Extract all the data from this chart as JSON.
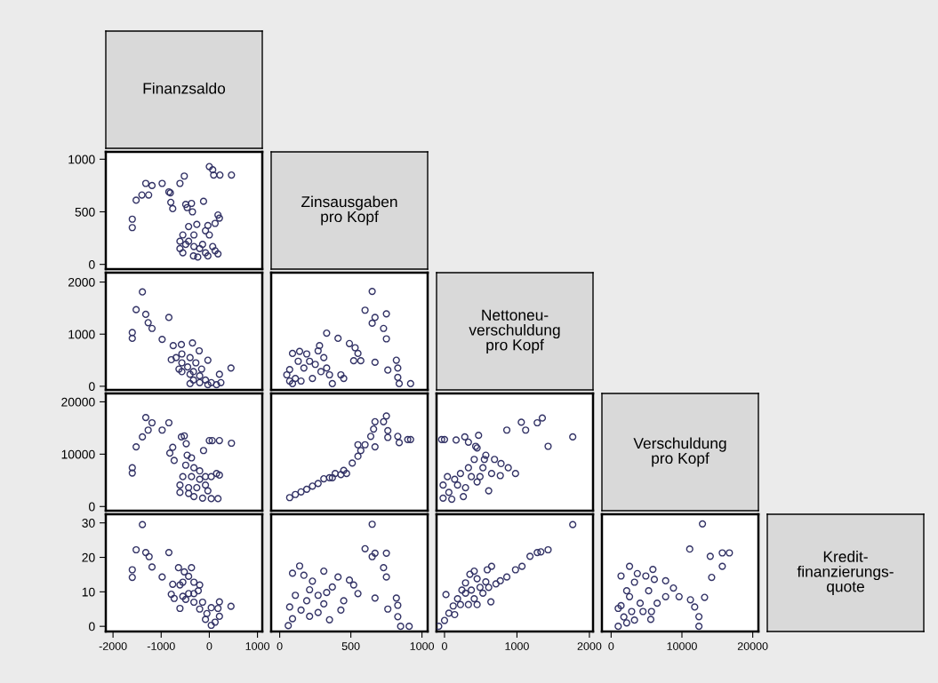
{
  "chart_data": [
    {
      "type": "other",
      "title": "Finanzsaldo"
    },
    {
      "type": "scatter",
      "color": "#333366",
      "marker": "circle",
      "tick_labels": "y",
      "xlim": [
        -2150,
        1100
      ],
      "ylim": [
        -45,
        1070
      ],
      "xticks": [
        -2000,
        -1000,
        0,
        1000
      ],
      "yticks": [
        0,
        500,
        1000
      ],
      "x": [
        -1600,
        -1600,
        -1520,
        -1400,
        -1260,
        -1320,
        -1190,
        -980,
        -840,
        -810,
        -800,
        -760,
        -610,
        -520,
        -490,
        -370,
        -350,
        -460,
        -120,
        0,
        70,
        90,
        220,
        460,
        180,
        210,
        120,
        -30,
        -610,
        -550,
        -330,
        -240,
        -30,
        180,
        -550,
        -430,
        -260,
        -80,
        0,
        -140,
        -430,
        -320,
        -200,
        -490,
        70,
        120,
        -320,
        -80,
        -610
      ],
      "values": [
        430,
        350,
        610,
        660,
        660,
        770,
        750,
        770,
        690,
        680,
        590,
        530,
        770,
        840,
        570,
        580,
        500,
        540,
        600,
        930,
        900,
        850,
        850,
        850,
        470,
        440,
        390,
        370,
        150,
        110,
        80,
        70,
        80,
        100,
        280,
        360,
        380,
        320,
        280,
        190,
        220,
        280,
        150,
        190,
        170,
        130,
        170,
        110,
        220
      ]
    },
    {
      "type": "other",
      "title": "Zinsausgaben\npro Kopf"
    },
    {
      "type": "scatter",
      "color": "#333366",
      "marker": "circle",
      "tick_labels": "y",
      "xlim": [
        -2150,
        1100
      ],
      "ylim": [
        -70,
        2180
      ],
      "xticks": [
        -2000,
        -1000,
        0,
        1000
      ],
      "yticks": [
        0,
        1000,
        2000
      ],
      "x": [
        -1390,
        -1520,
        -1320,
        -1270,
        -1190,
        -1600,
        -1600,
        -840,
        -980,
        -350,
        -580,
        -750,
        -210,
        -790,
        -30,
        450,
        -400,
        210,
        240,
        -690,
        -570,
        -450,
        -330,
        -200,
        -80,
        40,
        150,
        -570,
        -400,
        -280,
        -160,
        -570,
        -330,
        -30,
        -400,
        -630,
        -200
      ],
      "values": [
        1810,
        1470,
        1380,
        1220,
        1110,
        1030,
        920,
        1320,
        900,
        830,
        800,
        780,
        680,
        510,
        500,
        350,
        50,
        230,
        70,
        550,
        450,
        370,
        280,
        200,
        120,
        70,
        30,
        620,
        550,
        450,
        330,
        280,
        120,
        30,
        230,
        330,
        70
      ]
    },
    {
      "type": "scatter",
      "color": "#333366",
      "marker": "circle",
      "tick_labels": false,
      "xlim": [
        -60,
        1040
      ],
      "ylim": [
        -70,
        2180
      ],
      "xticks": [
        0,
        500,
        1000
      ],
      "yticks": [
        0,
        1000,
        2000
      ],
      "x": [
        650,
        600,
        670,
        650,
        750,
        730,
        750,
        330,
        410,
        490,
        530,
        550,
        520,
        570,
        670,
        820,
        830,
        760,
        830,
        840,
        920,
        280,
        90,
        140,
        70,
        50,
        110,
        170,
        210,
        250,
        290,
        330,
        230,
        150,
        70,
        190,
        270,
        350,
        370,
        430,
        450,
        130,
        310,
        90
      ],
      "values": [
        1820,
        1460,
        1320,
        1210,
        1390,
        1110,
        910,
        1020,
        920,
        820,
        740,
        630,
        490,
        490,
        460,
        500,
        350,
        310,
        170,
        50,
        50,
        780,
        630,
        670,
        100,
        220,
        150,
        350,
        480,
        420,
        280,
        350,
        150,
        100,
        320,
        620,
        680,
        220,
        50,
        220,
        150,
        480,
        550,
        50
      ]
    },
    {
      "type": "other",
      "title": "Nettoneu-\nverschuldung\npro Kopf"
    },
    {
      "type": "scatter",
      "color": "#333366",
      "marker": "circle",
      "tick_labels": "y",
      "xlim": [
        -2150,
        1100
      ],
      "ylim": [
        -800,
        21600
      ],
      "xticks": [
        -2000,
        -1000,
        0,
        1000
      ],
      "yticks": [
        0,
        10000,
        20000
      ],
      "x": [
        -1320,
        -1190,
        -840,
        -980,
        -1270,
        -1390,
        -1520,
        -1600,
        -1600,
        -580,
        -520,
        -480,
        -760,
        -820,
        -730,
        -120,
        0,
        60,
        210,
        460,
        150,
        210,
        40,
        -460,
        -370,
        -490,
        -320,
        -550,
        -370,
        -200,
        -610,
        -430,
        -260,
        -80,
        -610,
        -430,
        -320,
        -140,
        40,
        180,
        -200,
        -30,
        -80
      ],
      "values": [
        17000,
        16000,
        16000,
        14600,
        14600,
        13300,
        11400,
        7400,
        6400,
        13300,
        13500,
        12000,
        11300,
        10200,
        8800,
        10700,
        12600,
        12600,
        12600,
        12100,
        6300,
        6000,
        5700,
        9800,
        9300,
        7900,
        7400,
        5700,
        5700,
        5200,
        4100,
        3600,
        3600,
        4100,
        2700,
        2500,
        1900,
        1600,
        1500,
        1500,
        6800,
        3000,
        5700
      ]
    },
    {
      "type": "scatter",
      "color": "#333366",
      "marker": "circle",
      "tick_labels": false,
      "xlim": [
        -60,
        1040
      ],
      "ylim": [
        -800,
        21600
      ],
      "xticks": [
        0,
        500,
        1000
      ],
      "yticks": [
        0,
        10000,
        20000
      ],
      "x": [
        70,
        150,
        230,
        310,
        390,
        450,
        510,
        550,
        570,
        550,
        600,
        670,
        640,
        660,
        670,
        730,
        750,
        760,
        760,
        830,
        840,
        900,
        920,
        470,
        370,
        110,
        190,
        270,
        350,
        430
      ],
      "values": [
        1700,
        2800,
        3900,
        5300,
        6300,
        6900,
        8300,
        9600,
        10700,
        11800,
        11800,
        11400,
        13400,
        14800,
        16200,
        16200,
        17300,
        14500,
        13200,
        13400,
        12200,
        12800,
        12800,
        6300,
        5500,
        2300,
        3300,
        4400,
        5500,
        6100
      ]
    },
    {
      "type": "scatter",
      "color": "#333366",
      "marker": "circle",
      "tick_labels": false,
      "xlim": [
        -110,
        2050
      ],
      "ylim": [
        -800,
        21600
      ],
      "xticks": [
        0,
        1000,
        2000
      ],
      "yticks": [
        0,
        10000,
        20000
      ],
      "x": [
        -40,
        0,
        160,
        280,
        330,
        470,
        860,
        1060,
        1120,
        1280,
        1350,
        1770,
        1430,
        570,
        690,
        780,
        880,
        980,
        770,
        430,
        450,
        410,
        330,
        220,
        40,
        -20,
        -20,
        100,
        260,
        290,
        180,
        450,
        610,
        650,
        530,
        550,
        60,
        370,
        140,
        490
      ],
      "values": [
        12800,
        12800,
        12700,
        13300,
        12300,
        13600,
        14600,
        16100,
        14600,
        16000,
        16900,
        13300,
        11500,
        9800,
        9000,
        8200,
        7400,
        6300,
        5900,
        11500,
        11200,
        9000,
        7400,
        6300,
        5700,
        4100,
        1600,
        1400,
        1900,
        3600,
        4100,
        4700,
        3000,
        6300,
        7400,
        9000,
        2700,
        5700,
        5200,
        5700
      ]
    },
    {
      "type": "other",
      "title": "Verschuldung\npro Kopf"
    },
    {
      "type": "scatter",
      "color": "#333366",
      "marker": "circle",
      "xlim": [
        -2150,
        1100
      ],
      "ylim": [
        -1.5,
        32.5
      ],
      "xticks": [
        -2000,
        -1000,
        0,
        1000
      ],
      "yticks": [
        0,
        10,
        20,
        30
      ],
      "x": [
        -1390,
        -1520,
        -1320,
        -1250,
        -840,
        -1600,
        -1600,
        -1190,
        -980,
        -760,
        -790,
        -730,
        -610,
        450,
        210,
        180,
        210,
        -640,
        -520,
        -430,
        -320,
        -230,
        -140,
        -50,
        40,
        -550,
        -430,
        -320,
        -200,
        -80,
        -490,
        -320,
        -200,
        -370,
        -610,
        -550,
        40,
        120
      ],
      "values": [
        29.5,
        22.2,
        21.4,
        20.2,
        21.4,
        16.4,
        14.2,
        17.2,
        14.3,
        12.2,
        9.3,
        8.1,
        5.2,
        5.8,
        7.1,
        5.2,
        2.9,
        17.0,
        15.8,
        14.5,
        12.8,
        10.3,
        7.0,
        3.7,
        0.3,
        12.8,
        9.5,
        7.0,
        5.0,
        2.0,
        7.8,
        9.5,
        12.0,
        17.0,
        12.0,
        8.7,
        5.4,
        1.2
      ]
    },
    {
      "type": "scatter",
      "color": "#333366",
      "marker": "circle",
      "tick_labels": "x",
      "xlim": [
        -60,
        1040
      ],
      "ylim": [
        -1.5,
        32.5
      ],
      "xticks": [
        0,
        500,
        1000
      ],
      "yticks": [
        0,
        10,
        20,
        30
      ],
      "x": [
        650,
        600,
        670,
        650,
        750,
        730,
        750,
        410,
        490,
        520,
        550,
        670,
        820,
        830,
        760,
        830,
        850,
        910,
        350,
        430,
        450,
        140,
        90,
        170,
        230,
        310,
        210,
        270,
        330,
        110,
        70,
        150,
        90,
        60,
        210,
        310,
        270,
        370,
        190
      ],
      "values": [
        29.6,
        22.5,
        21.2,
        20.2,
        21.2,
        17.0,
        14.3,
        14.3,
        13.4,
        12.0,
        9.5,
        8.2,
        8.2,
        6.1,
        5.0,
        2.8,
        0.0,
        0.0,
        1.9,
        4.7,
        7.4,
        17.5,
        15.4,
        14.8,
        13.1,
        16.0,
        10.6,
        9.0,
        9.8,
        9.0,
        5.6,
        4.7,
        2.2,
        0.2,
        2.9,
        6.5,
        4.0,
        11.4,
        7.4
      ]
    },
    {
      "type": "scatter",
      "color": "#333366",
      "marker": "circle",
      "tick_labels": "x",
      "xlim": [
        -110,
        2050
      ],
      "ylim": [
        -1.5,
        32.5
      ],
      "xticks": [
        0,
        1000,
        2000
      ],
      "yticks": [
        0,
        10,
        20,
        30
      ],
      "x": [
        1770,
        1430,
        1330,
        1280,
        1180,
        1070,
        980,
        860,
        770,
        710,
        650,
        590,
        20,
        640,
        -80,
        0,
        60,
        120,
        180,
        240,
        290,
        350,
        410,
        450,
        490,
        530,
        410,
        330,
        290,
        370,
        140,
        570,
        610,
        220,
        450
      ],
      "values": [
        29.5,
        22.2,
        21.6,
        21.4,
        20.3,
        17.4,
        16.4,
        14.3,
        13.2,
        12.3,
        17.4,
        16.4,
        9.2,
        7.1,
        0.0,
        1.7,
        3.8,
        5.9,
        8.0,
        10.5,
        12.6,
        15.1,
        16.0,
        13.8,
        11.3,
        9.6,
        8.0,
        6.3,
        9.6,
        10.5,
        3.4,
        12.9,
        11.3,
        6.3,
        6.3
      ]
    },
    {
      "type": "scatter",
      "color": "#333366",
      "marker": "circle",
      "tick_labels": "x",
      "xlim": [
        -1300,
        20800
      ],
      "ylim": [
        -1.5,
        32.5
      ],
      "xticks": [
        0,
        10000,
        20000
      ],
      "yticks": [
        0,
        10,
        20,
        30
      ],
      "x": [
        12900,
        11100,
        14000,
        15700,
        16700,
        15700,
        14200,
        13200,
        12400,
        12400,
        5600,
        1000,
        2600,
        5900,
        7700,
        8800,
        7700,
        9600,
        11200,
        11800,
        1400,
        3300,
        2200,
        1400,
        1800,
        2900,
        4100,
        5300,
        6100,
        6500,
        4500,
        5700,
        3700,
        4900,
        2600,
        3300,
        2200,
        1000
      ],
      "values": [
        29.7,
        22.4,
        20.3,
        21.3,
        21.3,
        17.4,
        14.2,
        8.4,
        2.8,
        0.0,
        2.0,
        0.0,
        17.4,
        16.5,
        13.2,
        11.1,
        8.6,
        8.6,
        7.7,
        5.6,
        14.6,
        12.8,
        10.3,
        6.0,
        2.7,
        4.3,
        6.7,
        10.3,
        13.6,
        6.7,
        4.3,
        4.3,
        15.3,
        14.6,
        8.6,
        1.8,
        1.0,
        5.2
      ]
    },
    {
      "type": "other",
      "title": "Kredit-\nfinanzierungs-\nquote"
    }
  ]
}
